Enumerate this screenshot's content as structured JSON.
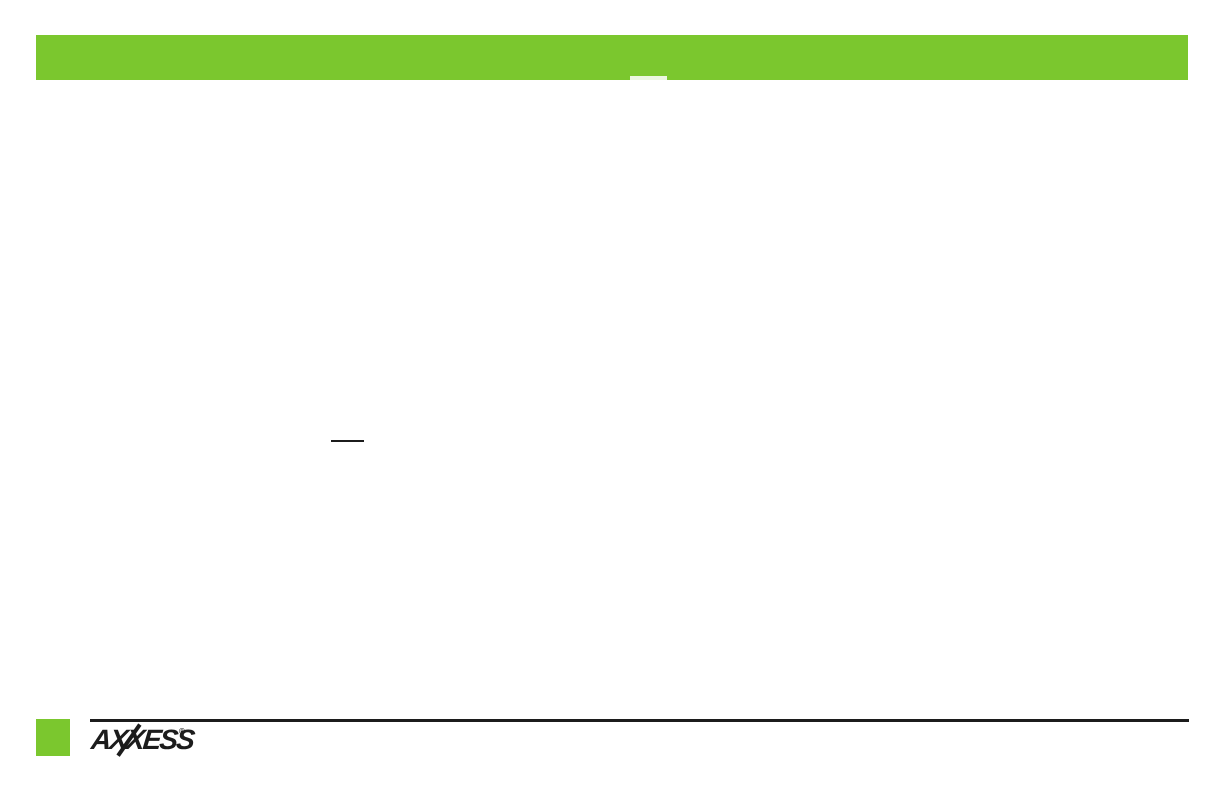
{
  "colors": {
    "brand_green": "#7bc72e",
    "ink": "#1c1c1c"
  },
  "header": {
    "bar_color": "#7bc72e"
  },
  "content": {
    "blank_underline_present": true
  },
  "footer": {
    "logo_text": "AXXESS",
    "registered_mark": "®"
  }
}
